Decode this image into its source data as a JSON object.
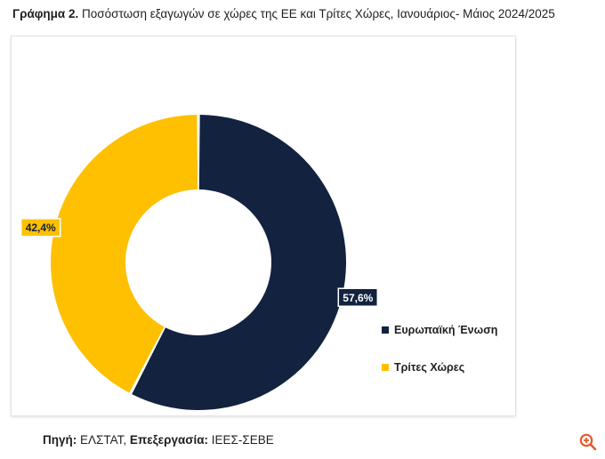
{
  "heading": {
    "label": "Γράφημα 2.",
    "text": "Ποσόστωση εξαγωγών σε χώρες της ΕΕ και Τρίτες Χώρες, Ιανουάριος- Μάιος 2024/2025"
  },
  "chart_data": {
    "type": "pie",
    "title": "",
    "donut": true,
    "legend_position": "bottom-right",
    "series": [
      {
        "name": "Ευρωπαϊκή Ένωση",
        "value": 57.6,
        "label": "57,6%",
        "color": "#12223f"
      },
      {
        "name": "Τρίτες Χώρες",
        "value": 42.4,
        "label": "42,4%",
        "color": "#fec000"
      }
    ]
  },
  "footer": {
    "source_label": "Πηγή:",
    "source_value": "ΕΛΣΤΑΤ,",
    "processing_label": "Επεξεργασία:",
    "processing_value": "ΙΕΕΣ-ΣΕΒΕ"
  },
  "controls": {
    "zoom_icon": "zoom-in-icon",
    "zoom_color": "#e85a2a"
  }
}
